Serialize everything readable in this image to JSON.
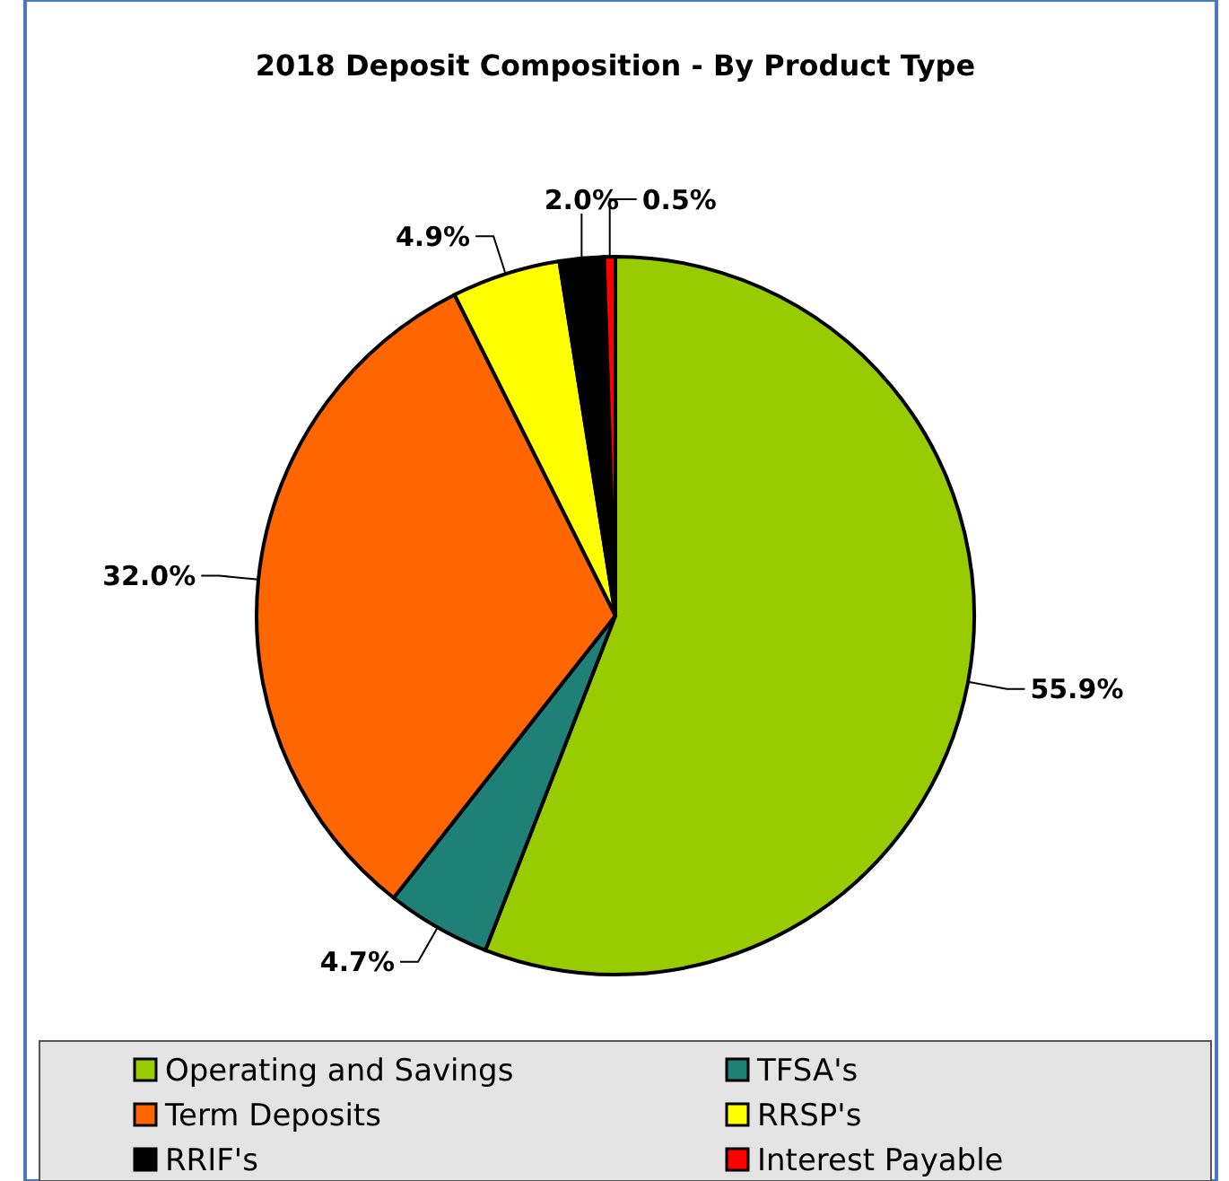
{
  "chart_data": {
    "type": "pie",
    "title": "2018 Deposit Composition - By Product Type",
    "categories": [
      "Operating and Savings",
      "TFSA's",
      "Term Deposits",
      "RRSP's",
      "RRIF's",
      "Interest Payable"
    ],
    "values": [
      55.9,
      4.7,
      32.0,
      4.9,
      2.0,
      0.5
    ],
    "colors": [
      "#99cc00",
      "#1f8078",
      "#ff6600",
      "#ffff00",
      "#000000",
      "#ff0000"
    ],
    "value_labels": [
      "55.9%",
      "4.7%",
      "32.0%",
      "4.9%",
      "2.0%",
      "0.5%"
    ],
    "legend": "bottom"
  }
}
